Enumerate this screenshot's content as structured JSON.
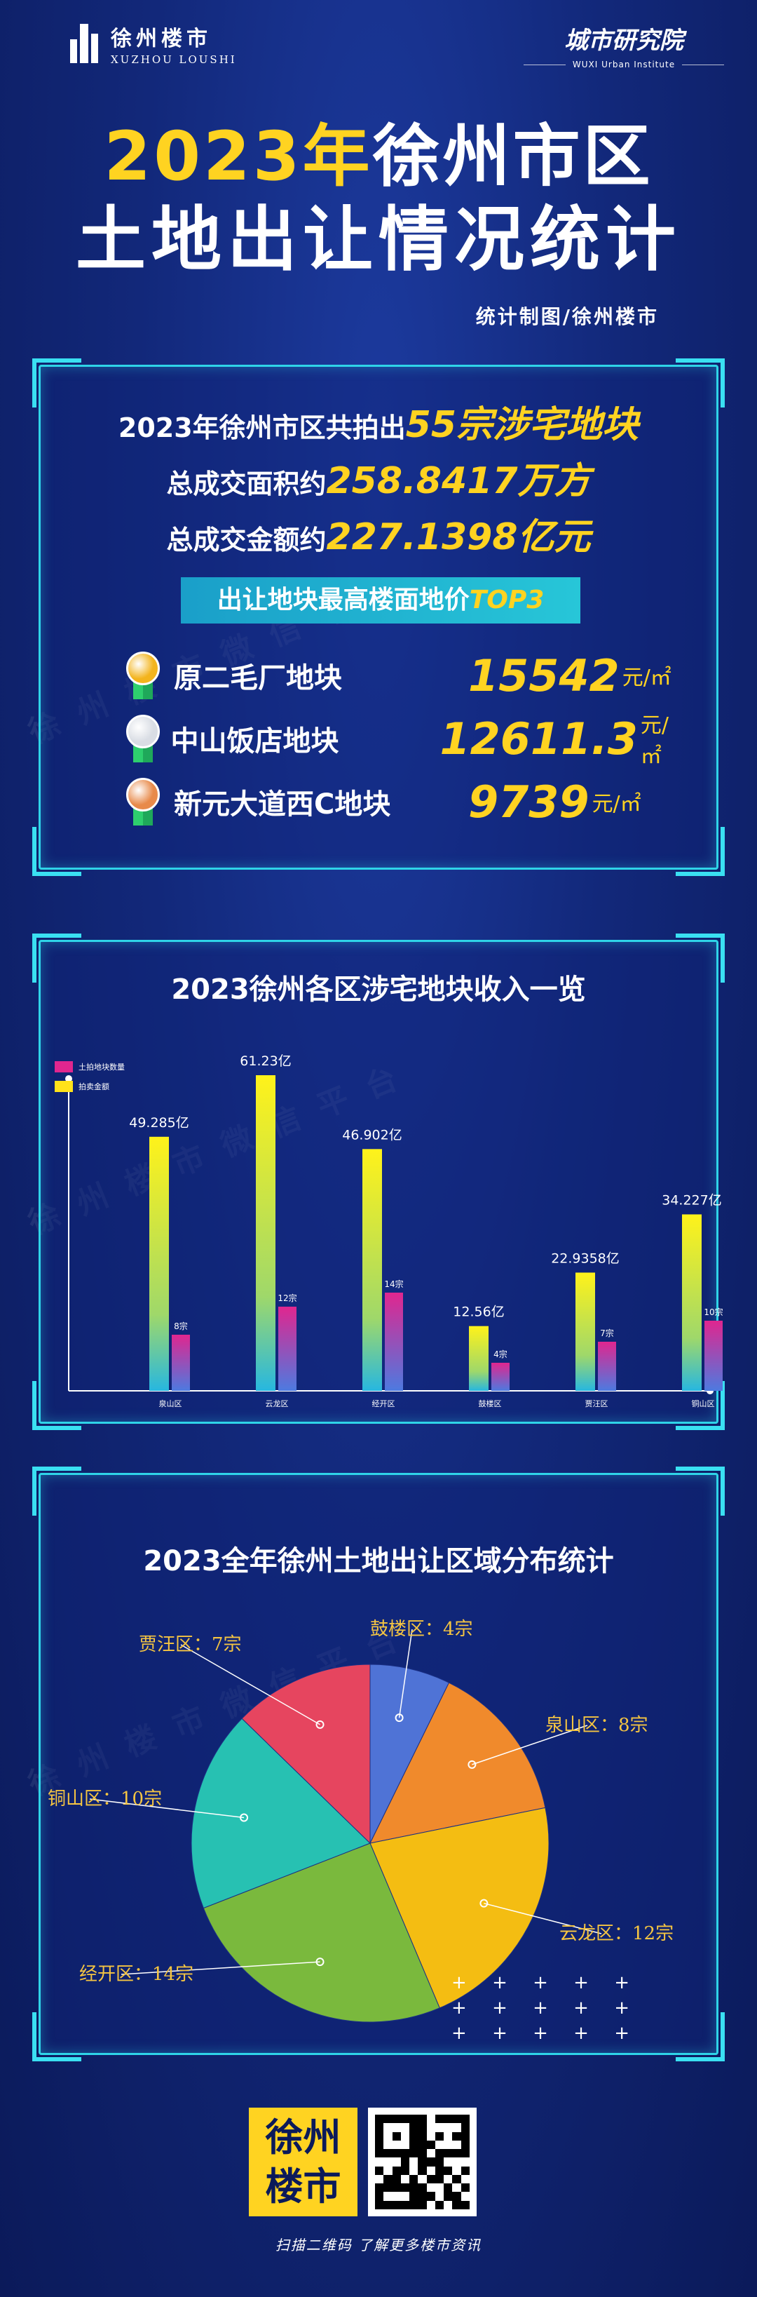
{
  "header": {
    "left_logo_main": "徐州楼市",
    "left_logo_sub": "XUZHOU LOUSHI",
    "right_logo_main": "城市研究院",
    "right_logo_sub": "WUXI Urban Institute"
  },
  "title": {
    "year": "2023年",
    "line1_rest": "徐州市区",
    "line2": "土地出让情况统计"
  },
  "credit": "统计制图/徐州楼市",
  "watermark": "徐州楼市微信平台",
  "summary": {
    "line1_prefix": "2023年徐州市区共拍出",
    "line1_highlight": "55宗涉宅地块",
    "line2_prefix": "总成交面积约",
    "line2_highlight": "258.8417万方",
    "line3_prefix": "总成交金额约",
    "line3_highlight": "227.1398亿元"
  },
  "top3": {
    "banner_prefix": "出让地块最高楼面地价",
    "banner_highlight": "TOP3",
    "unit": "元/㎡",
    "items": [
      {
        "name": "原二毛厂地块",
        "value": "15542",
        "medal": "gold",
        "medal_color": "#f3b41d"
      },
      {
        "name": "中山饭店地块",
        "value": "12611.3",
        "medal": "silver",
        "medal_color": "#d9dde4"
      },
      {
        "name": "新元大道西C地块",
        "value": "9739",
        "medal": "bronze",
        "medal_color": "#e88a4a"
      }
    ]
  },
  "bar_section": {
    "title": "2023徐州各区涉宅地块收入一览",
    "legend": [
      {
        "label": "土拍地块数量",
        "color": "#e0268f"
      },
      {
        "label": "拍卖金额",
        "color": "#ffe21a"
      }
    ]
  },
  "pie_section": {
    "title": "2023全年徐州土地出让区域分布统计"
  },
  "footer": {
    "logo_line1": "徐州",
    "logo_line2": "楼市",
    "qr_center": "徐州楼市",
    "text": "扫描二维码 了解更多楼市资讯"
  },
  "chart_data": [
    {
      "type": "bar",
      "title": "2023徐州各区涉宅地块收入一览",
      "categories": [
        "泉山区",
        "云龙区",
        "经开区",
        "鼓楼区",
        "贾汪区",
        "铜山区"
      ],
      "series": [
        {
          "name": "拍卖金额",
          "values": [
            49.285,
            61.23,
            46.902,
            12.56,
            22.9358,
            34.227
          ],
          "labels": [
            "49.285亿",
            "61.23亿",
            "46.902亿",
            "12.56亿",
            "22.9358亿",
            "34.227亿"
          ],
          "color": "#ffe21a"
        },
        {
          "name": "土拍地块数量",
          "values": [
            8,
            12,
            14,
            4,
            7,
            10
          ],
          "labels": [
            "8宗",
            "12宗",
            "14宗",
            "4宗",
            "7宗",
            "10宗"
          ],
          "color": "#e0268f"
        }
      ]
    },
    {
      "type": "pie",
      "title": "2023全年徐州土地出让区域分布统计",
      "slices": [
        {
          "label": "鼓楼区：4宗",
          "value": 4,
          "color": "#4f73d6"
        },
        {
          "label": "泉山区：8宗",
          "value": 8,
          "color": "#f08a2c"
        },
        {
          "label": "云龙区：12宗",
          "value": 12,
          "color": "#f4bd12"
        },
        {
          "label": "经开区：14宗",
          "value": 14,
          "color": "#7ab93d"
        },
        {
          "label": "铜山区：10宗",
          "value": 10,
          "color": "#27c1b2"
        },
        {
          "label": "贾汪区：7宗",
          "value": 7,
          "color": "#e6455f"
        }
      ]
    }
  ]
}
